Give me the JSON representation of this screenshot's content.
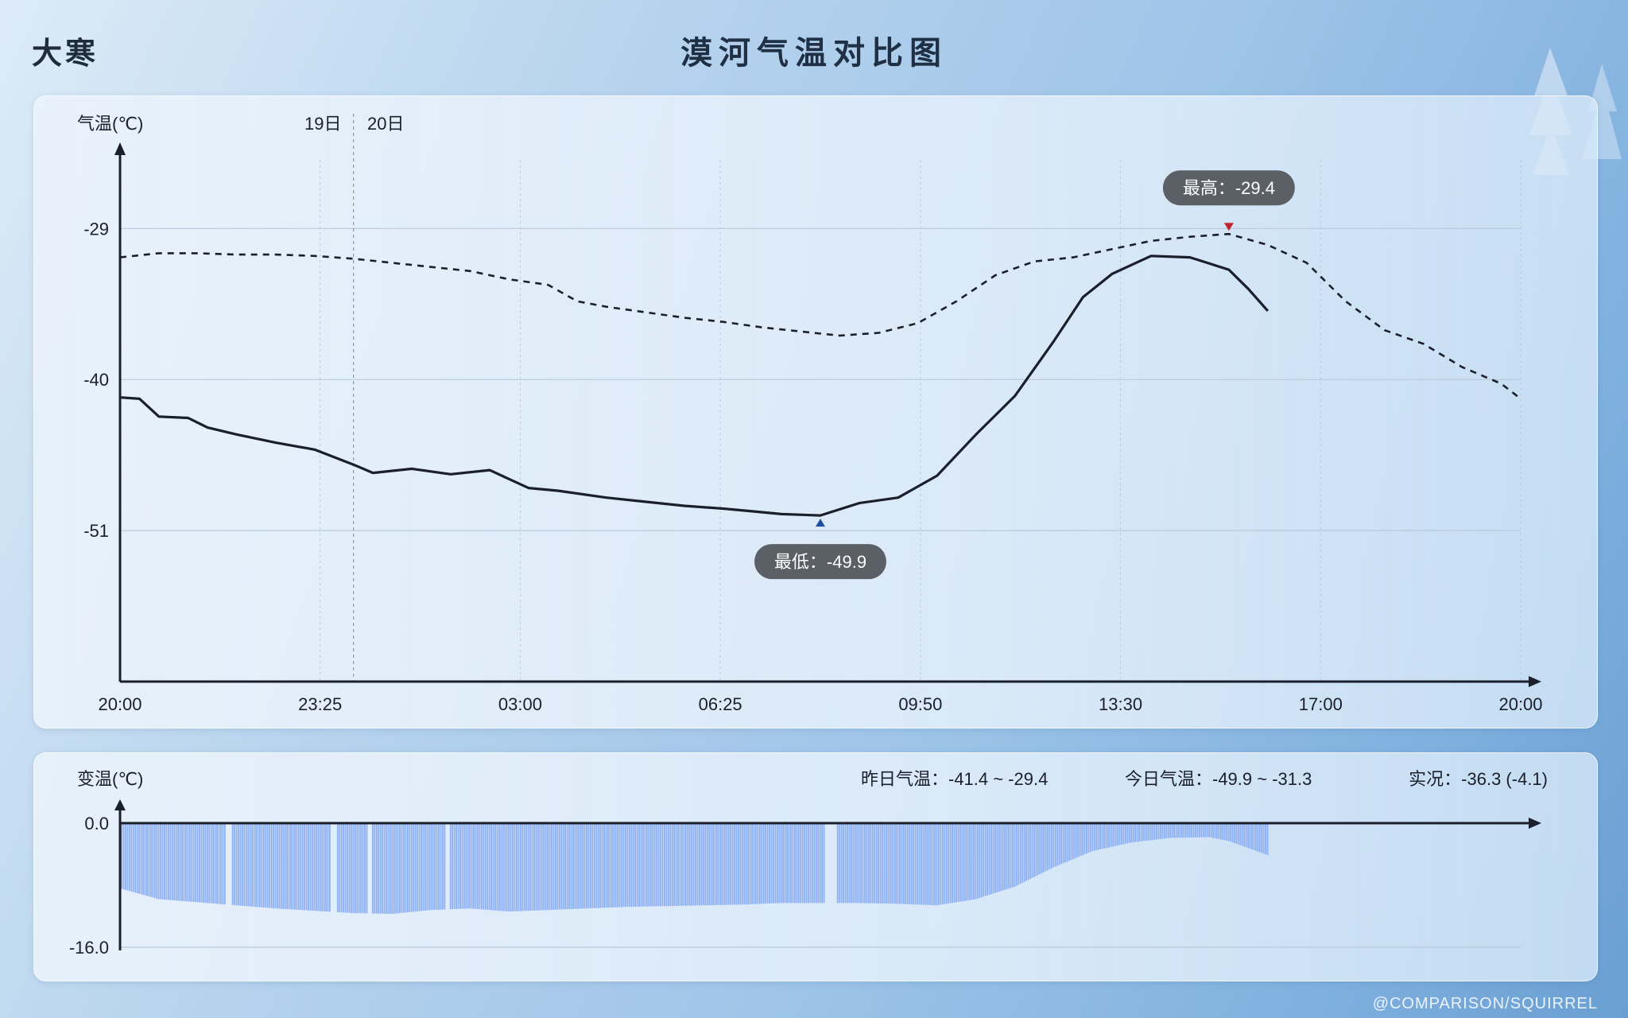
{
  "header": {
    "corner_label": "大寒",
    "title": "漠河气温对比图"
  },
  "legend_stats": {
    "yesterday": "昨日气温：-41.4 ~ -29.4",
    "today": "今日气温：-49.9 ~ -31.3",
    "current": "实况：-36.3 (-4.1)"
  },
  "watermark": "@COMPARISON/SQUIRREL",
  "colors": {
    "line": "#1a1f2b",
    "bar": "#8db0f5",
    "axis": "#1a1f2b",
    "grid": "#b9c9da",
    "tooltip_bg": "#5b5f66",
    "max_marker": "#c0262c",
    "min_marker": "#1f4e9a"
  },
  "chart_data": [
    {
      "type": "line",
      "ylabel": "气温(℃)",
      "yticks": [
        -29,
        -40,
        -51
      ],
      "ylim": [
        -62,
        -24
      ],
      "xticks": [
        "20:00",
        "23:25",
        "03:00",
        "06:25",
        "09:50",
        "13:30",
        "17:00",
        "20:00"
      ],
      "xlim": [
        0,
        1440
      ],
      "day_markers": [
        "19日",
        "20日"
      ],
      "grid": true,
      "series": [
        {
          "style": "dashed",
          "points": [
            [
              0,
              -31.1
            ],
            [
              40,
              -30.8
            ],
            [
              80,
              -30.8
            ],
            [
              120,
              -30.9
            ],
            [
              160,
              -30.9
            ],
            [
              200,
              -31.0
            ],
            [
              240,
              -31.2
            ],
            [
              280,
              -31.5
            ],
            [
              320,
              -31.8
            ],
            [
              360,
              -32.1
            ],
            [
              400,
              -32.7
            ],
            [
              440,
              -33.1
            ],
            [
              470,
              -34.3
            ],
            [
              500,
              -34.7
            ],
            [
              540,
              -35.1
            ],
            [
              580,
              -35.5
            ],
            [
              620,
              -35.8
            ],
            [
              660,
              -36.2
            ],
            [
              700,
              -36.5
            ],
            [
              740,
              -36.8
            ],
            [
              780,
              -36.6
            ],
            [
              820,
              -35.9
            ],
            [
              860,
              -34.3
            ],
            [
              900,
              -32.4
            ],
            [
              940,
              -31.4
            ],
            [
              980,
              -31.1
            ],
            [
              1020,
              -30.5
            ],
            [
              1060,
              -29.9
            ],
            [
              1100,
              -29.6
            ],
            [
              1140,
              -29.4
            ],
            [
              1180,
              -30.2
            ],
            [
              1220,
              -31.5
            ],
            [
              1260,
              -34.3
            ],
            [
              1300,
              -36.4
            ],
            [
              1340,
              -37.4
            ],
            [
              1380,
              -39.1
            ],
            [
              1420,
              -40.3
            ],
            [
              1440,
              -41.4
            ]
          ]
        },
        {
          "style": "solid",
          "points": [
            [
              0,
              -41.3
            ],
            [
              20,
              -41.4
            ],
            [
              40,
              -42.7
            ],
            [
              70,
              -42.8
            ],
            [
              90,
              -43.5
            ],
            [
              120,
              -44.0
            ],
            [
              160,
              -44.6
            ],
            [
              200,
              -45.1
            ],
            [
              240,
              -46.2
            ],
            [
              260,
              -46.8
            ],
            [
              300,
              -46.5
            ],
            [
              340,
              -46.9
            ],
            [
              380,
              -46.6
            ],
            [
              420,
              -47.9
            ],
            [
              450,
              -48.1
            ],
            [
              500,
              -48.6
            ],
            [
              540,
              -48.9
            ],
            [
              580,
              -49.2
            ],
            [
              620,
              -49.4
            ],
            [
              650,
              -49.6
            ],
            [
              680,
              -49.8
            ],
            [
              720,
              -49.9
            ],
            [
              760,
              -49.0
            ],
            [
              800,
              -48.6
            ],
            [
              840,
              -47.0
            ],
            [
              880,
              -44.0
            ],
            [
              920,
              -41.2
            ],
            [
              960,
              -37.2
            ],
            [
              990,
              -34.0
            ],
            [
              1020,
              -32.3
            ],
            [
              1060,
              -31.0
            ],
            [
              1100,
              -31.1
            ],
            [
              1140,
              -32.0
            ],
            [
              1160,
              -33.4
            ],
            [
              1180,
              -35.0
            ]
          ]
        }
      ],
      "annotations": [
        {
          "text": "最高：-29.4",
          "x": 1140,
          "y": -29.4
        },
        {
          "text": "最低：-49.9",
          "x": 720,
          "y": -49.9
        }
      ]
    },
    {
      "type": "bar",
      "ylabel": "变温(℃)",
      "yticks": [
        "0.0",
        "-16.0"
      ],
      "ylim": [
        -16,
        0
      ],
      "xlim": [
        0,
        1440
      ],
      "profile": [
        [
          0,
          -8.4
        ],
        [
          40,
          -9.8
        ],
        [
          80,
          -10.2
        ],
        [
          120,
          -10.6
        ],
        [
          160,
          -11.0
        ],
        [
          200,
          -11.3
        ],
        [
          240,
          -11.6
        ],
        [
          280,
          -11.7
        ],
        [
          320,
          -11.2
        ],
        [
          360,
          -11.0
        ],
        [
          400,
          -11.4
        ],
        [
          440,
          -11.2
        ],
        [
          480,
          -11.0
        ],
        [
          520,
          -10.8
        ],
        [
          560,
          -10.7
        ],
        [
          600,
          -10.6
        ],
        [
          640,
          -10.5
        ],
        [
          680,
          -10.3
        ],
        [
          720,
          -10.3
        ],
        [
          760,
          -10.3
        ],
        [
          800,
          -10.4
        ],
        [
          840,
          -10.6
        ],
        [
          880,
          -9.8
        ],
        [
          920,
          -8.2
        ],
        [
          960,
          -5.7
        ],
        [
          1000,
          -3.6
        ],
        [
          1040,
          -2.5
        ],
        [
          1080,
          -1.9
        ],
        [
          1120,
          -1.8
        ],
        [
          1140,
          -2.3
        ],
        [
          1180,
          -4.1
        ]
      ],
      "gaps": [
        [
          110,
          114
        ],
        [
          218,
          222
        ],
        [
          255,
          258
        ],
        [
          336,
          339
        ],
        [
          725,
          736
        ]
      ]
    }
  ]
}
